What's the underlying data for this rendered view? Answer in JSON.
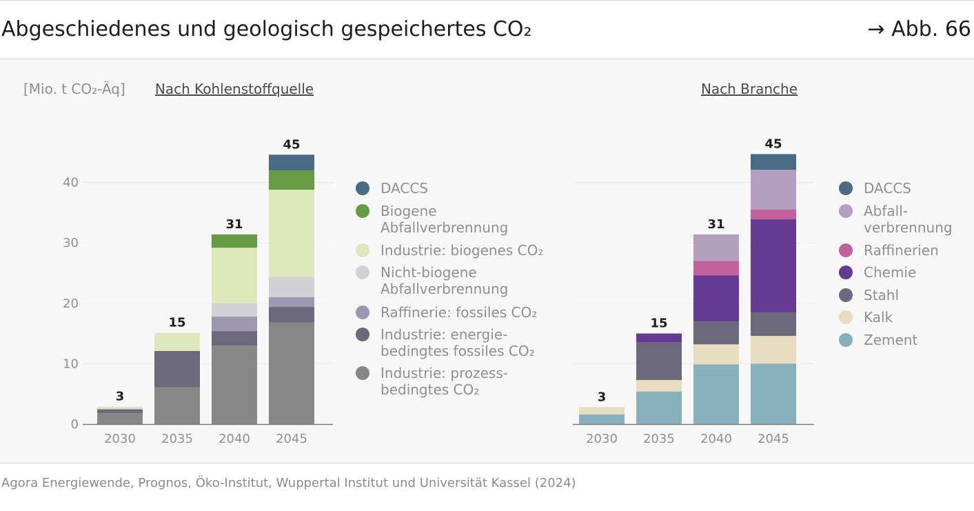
{
  "header": {
    "title": "Abgeschiedenes und geologisch gespeichertes CO₂",
    "figure_ref": "→ Abb. 66"
  },
  "source": "Agora Energiewende, Prognos, Öko-Institut, Wuppertal Institut und Universität Kassel (2024)",
  "chart_data": [
    {
      "type": "bar",
      "stacked": true,
      "title": "Nach Kohlenstoffquelle",
      "ylabel": "[Mio. t CO₂-Äq]",
      "ylim": [
        0,
        45
      ],
      "yticks": [
        "0",
        "10",
        "20",
        "30",
        "40"
      ],
      "categories": [
        "2030",
        "2035",
        "2040",
        "2045"
      ],
      "totals": [
        "3",
        "15",
        "31",
        "45"
      ],
      "legend_position": "right",
      "series": [
        {
          "name": "Industrie: prozess-bedingtes CO₂",
          "legend_lines": [
            "Industrie: prozess-",
            "bedingtes CO₂"
          ],
          "color": "#878787",
          "values": [
            1.8,
            6.1,
            13.0,
            16.8
          ]
        },
        {
          "name": "Industrie: energie-bedingtes fossiles CO₂",
          "legend_lines": [
            "Industrie: energie-",
            "bedingtes fossiles CO₂"
          ],
          "color": "#6c6a7a",
          "values": [
            0.6,
            6.0,
            2.4,
            2.6
          ]
        },
        {
          "name": "Raffinerie: fossiles CO₂",
          "legend_lines": [
            "Raffinerie: fossiles CO₂"
          ],
          "color": "#9c97ae",
          "values": [
            0.1,
            0.0,
            2.4,
            1.6
          ]
        },
        {
          "name": "Nicht-biogene Abfallverbrennung",
          "legend_lines": [
            "Nicht-biogene",
            "Abfallverbrennung"
          ],
          "color": "#d1d1d6",
          "values": [
            0.1,
            0.0,
            2.2,
            3.4
          ]
        },
        {
          "name": "Industrie: biogenes CO₂",
          "legend_lines": [
            "Industrie: biogenes CO₂"
          ],
          "color": "#dfe8bb",
          "values": [
            0.3,
            3.0,
            9.2,
            14.4
          ]
        },
        {
          "name": "Biogene Abfallverbrennung",
          "legend_lines": [
            "Biogene",
            "Abfallverbrennung"
          ],
          "color": "#669a43",
          "values": [
            0.0,
            0.0,
            2.2,
            3.2
          ]
        },
        {
          "name": "DACCS",
          "legend_lines": [
            "DACCS"
          ],
          "color": "#4a6b84",
          "values": [
            0.0,
            0.0,
            0.0,
            2.6
          ]
        }
      ]
    },
    {
      "type": "bar",
      "stacked": true,
      "title": "Nach Branche",
      "ylim": [
        0,
        45
      ],
      "categories": [
        "2030",
        "2035",
        "2040",
        "2045"
      ],
      "totals": [
        "3",
        "15",
        "31",
        "45"
      ],
      "legend_position": "right",
      "series": [
        {
          "name": "Zement",
          "legend_lines": [
            "Zement"
          ],
          "color": "#87b0ba",
          "values": [
            1.6,
            5.4,
            9.9,
            10.0
          ]
        },
        {
          "name": "Kalk",
          "legend_lines": [
            "Kalk"
          ],
          "color": "#e6dcbf",
          "values": [
            1.2,
            1.9,
            3.3,
            4.6
          ]
        },
        {
          "name": "Stahl",
          "legend_lines": [
            "Stahl"
          ],
          "color": "#6c6a7a",
          "values": [
            0.0,
            6.2,
            3.8,
            3.9
          ]
        },
        {
          "name": "Chemie",
          "legend_lines": [
            "Chemie"
          ],
          "color": "#653a91",
          "values": [
            0.0,
            1.5,
            7.6,
            15.4
          ]
        },
        {
          "name": "Raffinerien",
          "legend_lines": [
            "Raffinerien"
          ],
          "color": "#c3619f",
          "values": [
            0.0,
            0.0,
            2.4,
            1.6
          ]
        },
        {
          "name": "Abfall-verbrennung",
          "legend_lines": [
            "Abfall-",
            "verbrennung"
          ],
          "color": "#b3a0c1",
          "values": [
            0.0,
            0.0,
            4.4,
            6.6
          ]
        },
        {
          "name": "DACCS",
          "legend_lines": [
            "DACCS"
          ],
          "color": "#4a6b84",
          "values": [
            0.0,
            0.0,
            0.0,
            2.6
          ]
        }
      ]
    }
  ]
}
